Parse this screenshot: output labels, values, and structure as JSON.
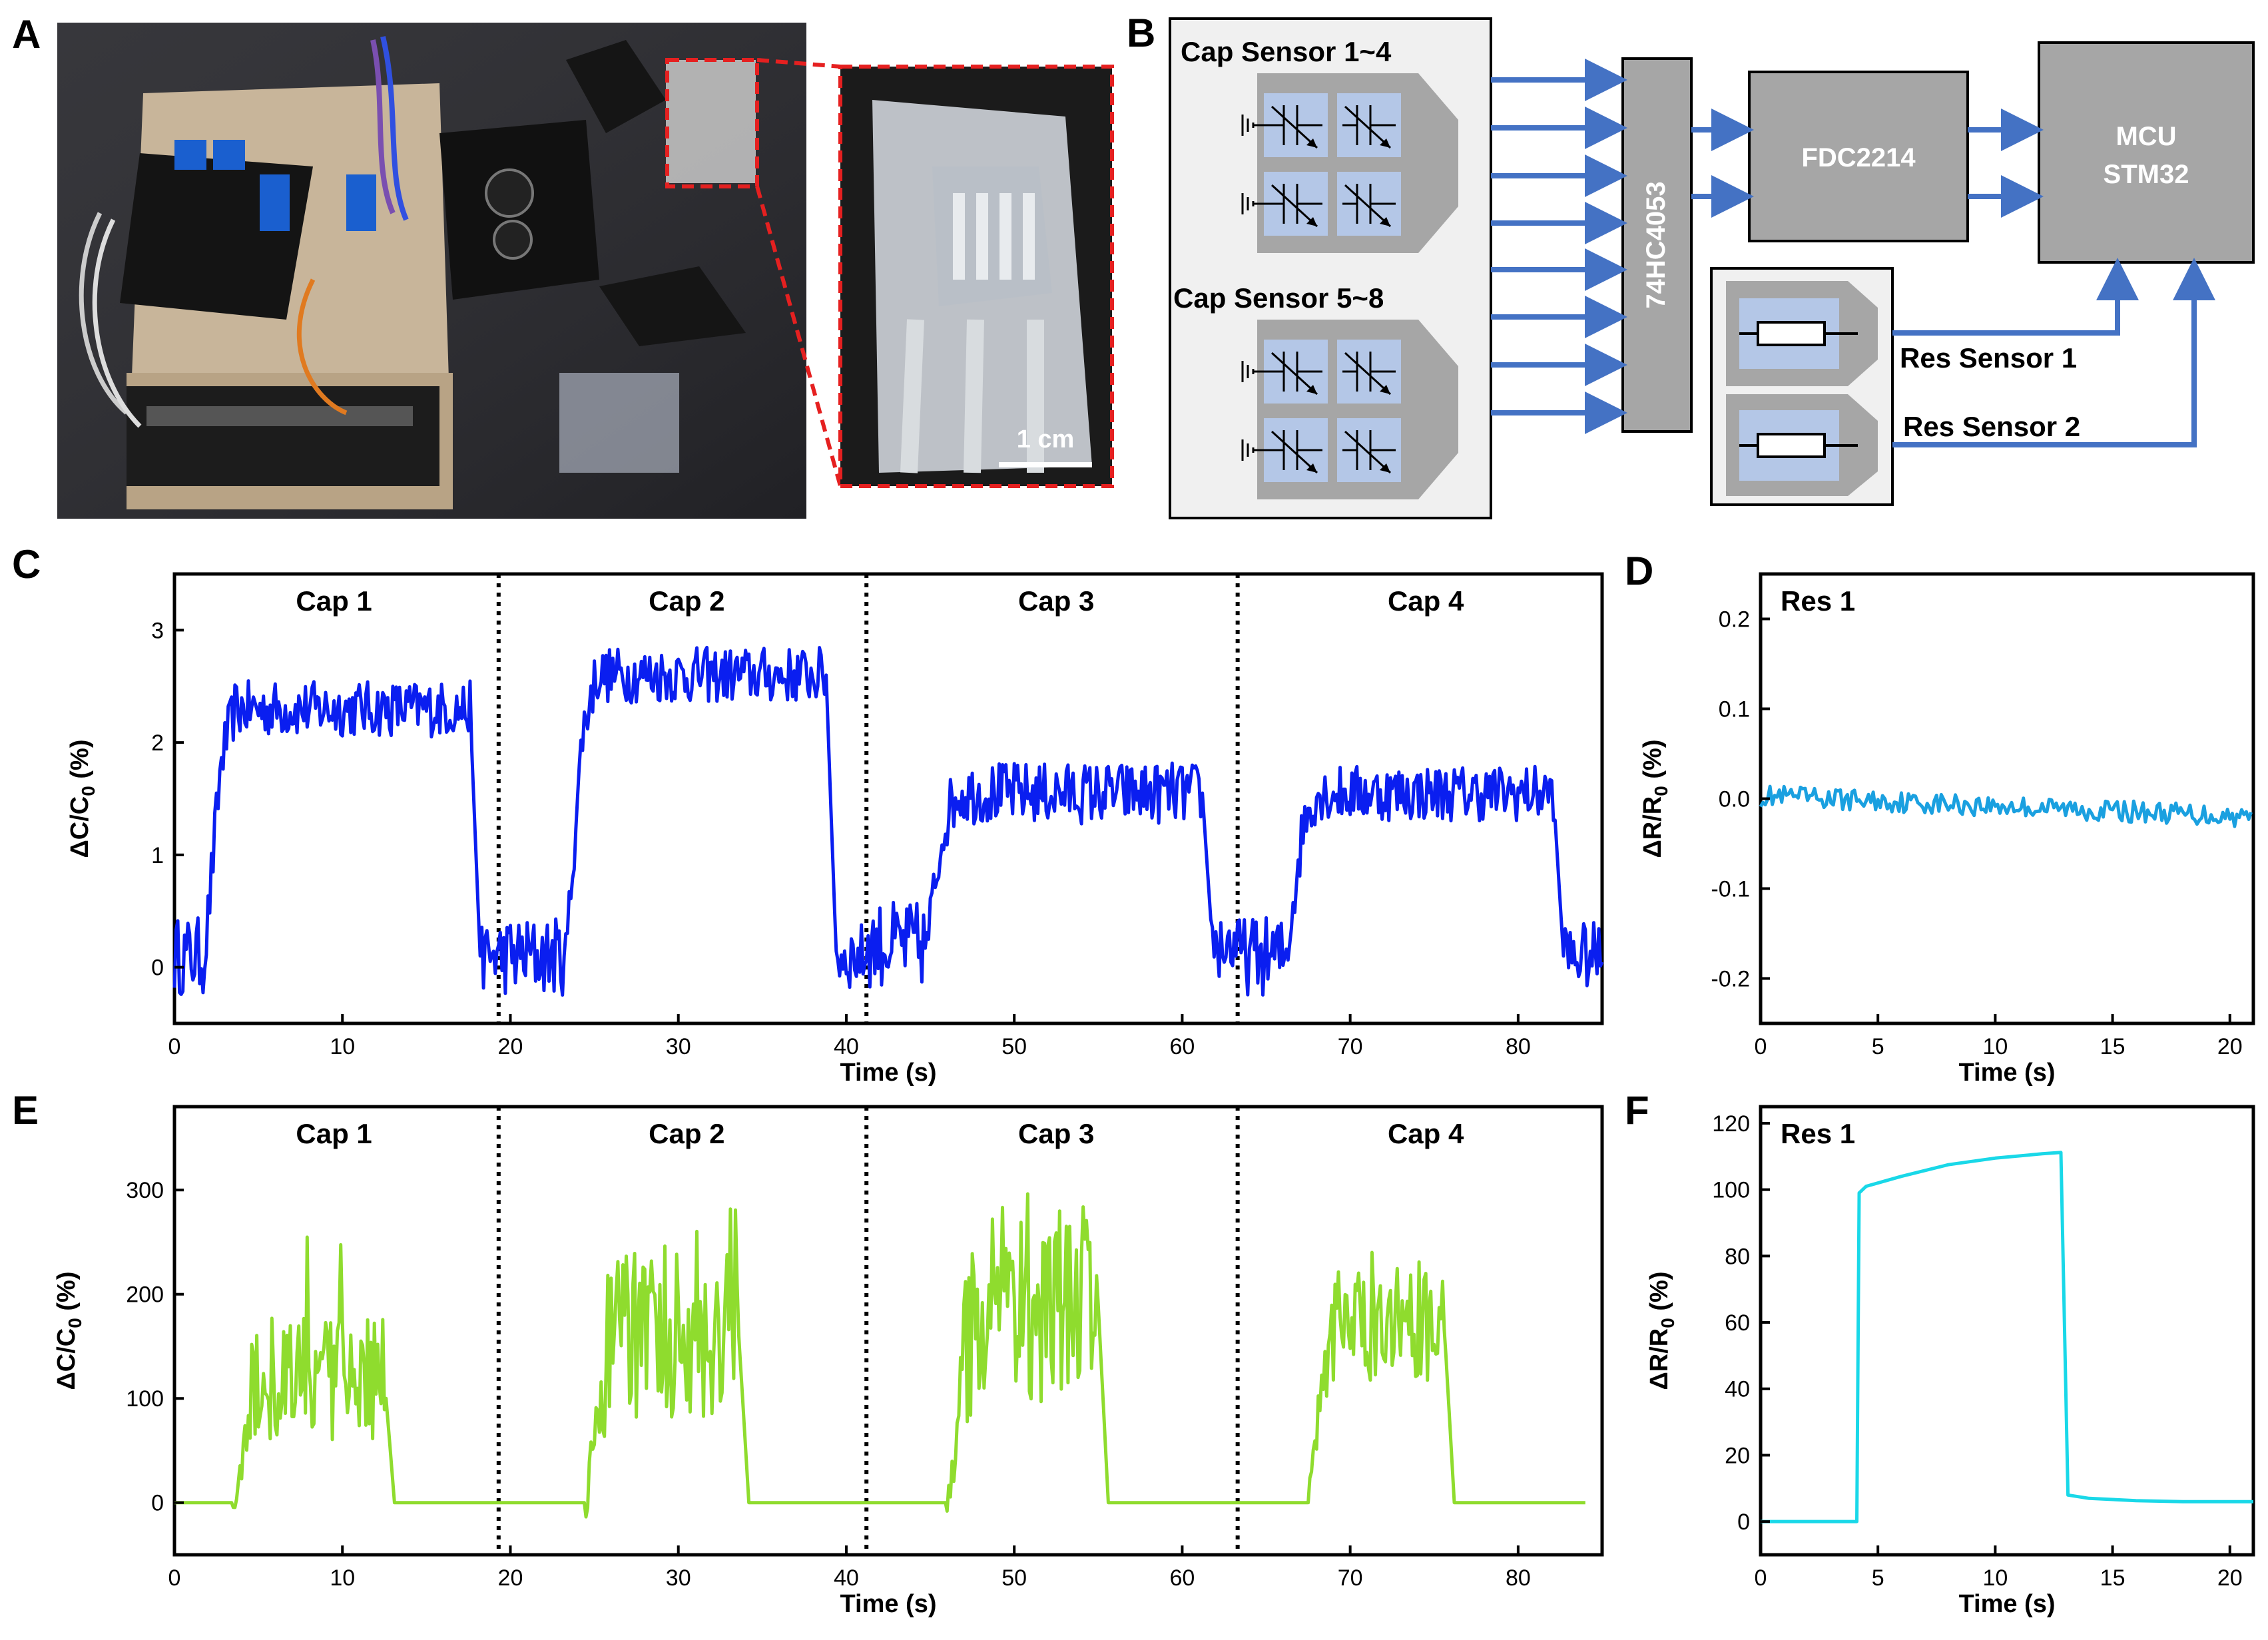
{
  "panels": {
    "A": {
      "letter": "A",
      "scale_bar": "1 cm"
    },
    "B": {
      "letter": "B",
      "group1": "Cap Sensor 1~4",
      "group2": "Cap Sensor 5~8",
      "mux": "74HC4053",
      "cdc": "FDC2214",
      "mcu": [
        "MCU",
        "STM32"
      ],
      "res1": "Res Sensor 1",
      "res2": "Res Sensor 2",
      "colors": {
        "block": "#a6a6a6",
        "arrow": "#4472c4",
        "sensor_fill": "#b4c7e7",
        "box_bg": "#f0f0f0"
      }
    },
    "C": {
      "letter": "C"
    },
    "D": {
      "letter": "D"
    },
    "E": {
      "letter": "E"
    },
    "F": {
      "letter": "F"
    }
  },
  "chart_data": [
    {
      "id": "C",
      "type": "line",
      "color": "#0a1ef0",
      "xlabel": "Time (s)",
      "ylabel": "ΔC/C0 (%)",
      "xlim": [
        0,
        85
      ],
      "ylim": [
        -0.5,
        3.5
      ],
      "xticks": [
        0,
        10,
        20,
        30,
        40,
        50,
        60,
        70,
        80
      ],
      "yticks": [
        0,
        1,
        2,
        3
      ],
      "dividers": [
        19.3,
        41.2,
        63.3
      ],
      "segment_labels": [
        "Cap 1",
        "Cap 2",
        "Cap 3",
        "Cap 4"
      ],
      "segment_label_x": [
        9.5,
        30.5,
        52.5,
        74.5
      ],
      "segments": [
        {
          "start": 0,
          "on": 2.8,
          "off": 17.6,
          "end": 19.3,
          "base": 0.1,
          "plateau": 2.2,
          "noise": 0.5
        },
        {
          "start": 19.3,
          "on": 24.3,
          "off": 38.8,
          "end": 41.2,
          "base": 0.1,
          "plateau": 2.5,
          "noise": 0.5
        },
        {
          "start": 41.2,
          "on": 45.8,
          "off": 61.2,
          "end": 63.3,
          "base": 0.2,
          "plateau": 1.35,
          "noise": 0.55
        },
        {
          "start": 63.3,
          "on": 67.2,
          "off": 82.1,
          "end": 85,
          "base": 0.1,
          "plateau": 1.45,
          "noise": 0.5
        }
      ]
    },
    {
      "id": "D",
      "type": "line",
      "color": "#1aa0e0",
      "xlabel": "Time (s)",
      "ylabel": "ΔR/R0 (%)",
      "xlim": [
        0,
        21
      ],
      "ylim": [
        -0.25,
        0.25
      ],
      "xticks": [
        0,
        5,
        10,
        15,
        20
      ],
      "yticks": [
        0.2,
        0.1,
        0.0,
        -0.1,
        -0.2
      ],
      "ytick_labels": [
        "0.2",
        "0.1",
        "0.0",
        "-0.1",
        "-0.2"
      ],
      "legend_text": "Res 1",
      "start_value": 0.003,
      "end_value": -0.02,
      "noise": 0.012
    },
    {
      "id": "E",
      "type": "line",
      "color": "#8fdc2e",
      "xlabel": "Time (s)",
      "ylabel": "ΔC/C0 (%)",
      "xlim": [
        0,
        85
      ],
      "ylim": [
        -50,
        380
      ],
      "xticks": [
        0,
        10,
        20,
        30,
        40,
        50,
        60,
        70,
        80
      ],
      "yticks": [
        0,
        100,
        200,
        300
      ],
      "dividers": [
        19.3,
        41.2,
        63.3
      ],
      "segment_labels": [
        "Cap 1",
        "Cap 2",
        "Cap 3",
        "Cap 4"
      ],
      "segment_label_x": [
        9.5,
        30.5,
        52.5,
        74.5
      ],
      "segments": [
        {
          "start": 0,
          "on": 4.5,
          "off": 12.5,
          "end": 19.3,
          "base": 0,
          "plateau": 120,
          "noise": 60
        },
        {
          "start": 19.3,
          "on": 25.5,
          "off": 33.6,
          "end": 41.2,
          "base": 0,
          "plateau": 160,
          "noise": 80
        },
        {
          "start": 41.2,
          "on": 47.0,
          "off": 55.0,
          "end": 63.3,
          "base": 0,
          "plateau": 190,
          "noise": 95
        },
        {
          "start": 63.3,
          "on": 68.5,
          "off": 75.6,
          "end": 84,
          "base": 0,
          "plateau": 170,
          "noise": 55
        }
      ]
    },
    {
      "id": "F",
      "type": "line",
      "color": "#19d8e8",
      "xlabel": "Time (s)",
      "ylabel": "ΔR/R0 (%)",
      "xlim": [
        0,
        21
      ],
      "ylim": [
        -10,
        125
      ],
      "xticks": [
        0,
        5,
        10,
        15,
        20
      ],
      "yticks": [
        0,
        20,
        40,
        60,
        80,
        100,
        120
      ],
      "legend_text": "Res 1",
      "points": [
        [
          0,
          0
        ],
        [
          4.1,
          0
        ],
        [
          4.2,
          99
        ],
        [
          4.5,
          101
        ],
        [
          6,
          104
        ],
        [
          8,
          107.5
        ],
        [
          10,
          109.5
        ],
        [
          12,
          110.8
        ],
        [
          12.8,
          111.2
        ],
        [
          13.1,
          8
        ],
        [
          14,
          7
        ],
        [
          16,
          6.3
        ],
        [
          18,
          6
        ],
        [
          21,
          6
        ]
      ]
    }
  ]
}
